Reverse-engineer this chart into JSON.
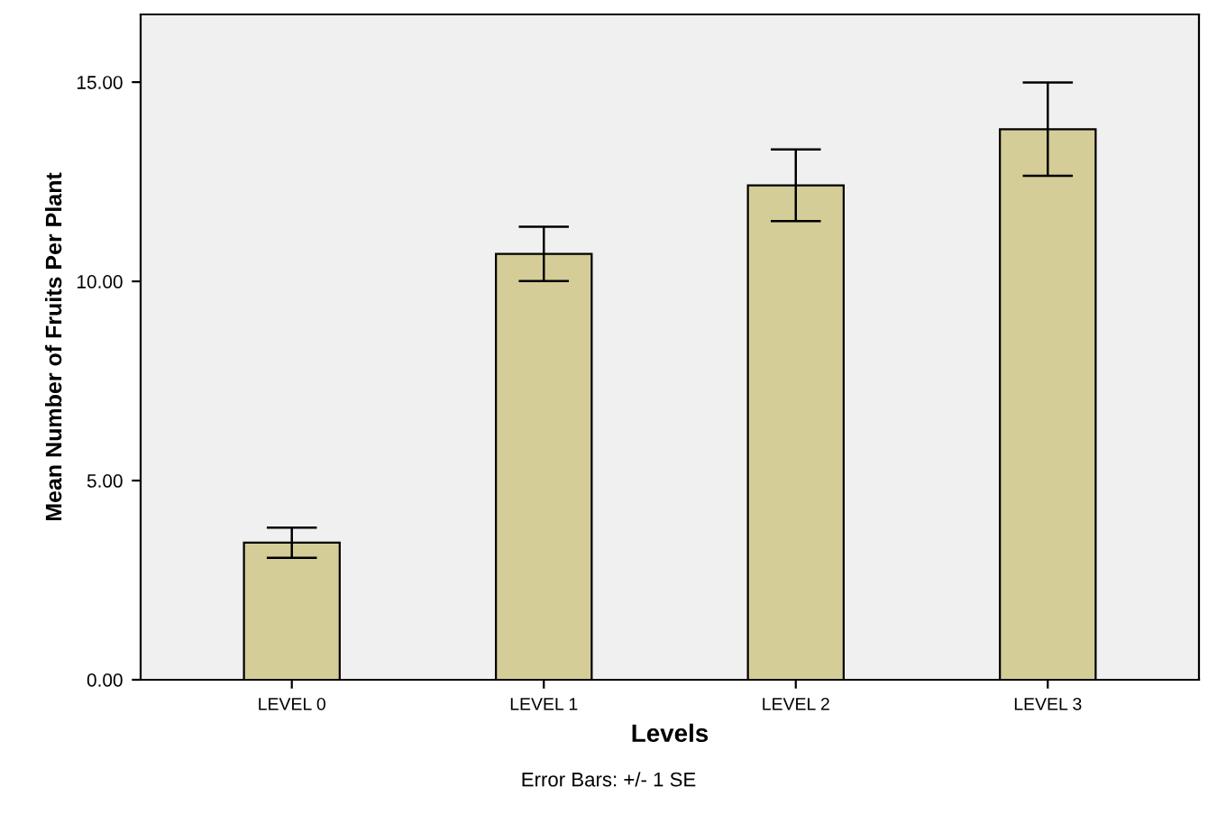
{
  "chart_data": {
    "type": "bar",
    "xlabel": "Levels",
    "ylabel": "Mean Number of Fruits Per Plant",
    "categories": [
      "LEVEL 0",
      "LEVEL 1",
      "LEVEL 2",
      "LEVEL 3"
    ],
    "values": [
      3.44,
      10.69,
      12.41,
      13.82
    ],
    "errors": [
      0.38,
      0.68,
      0.9,
      1.17
    ],
    "color": "#d4cd98",
    "ylim": [
      0,
      16.7
    ],
    "yticks": [
      {
        "value": 0,
        "label": "0.00"
      },
      {
        "value": 5,
        "label": "5.00"
      },
      {
        "value": 10,
        "label": "10.00"
      },
      {
        "value": 15,
        "label": "15.00"
      }
    ],
    "grid": false,
    "annotations": [
      "Error Bars: +/- 1 SE"
    ]
  }
}
